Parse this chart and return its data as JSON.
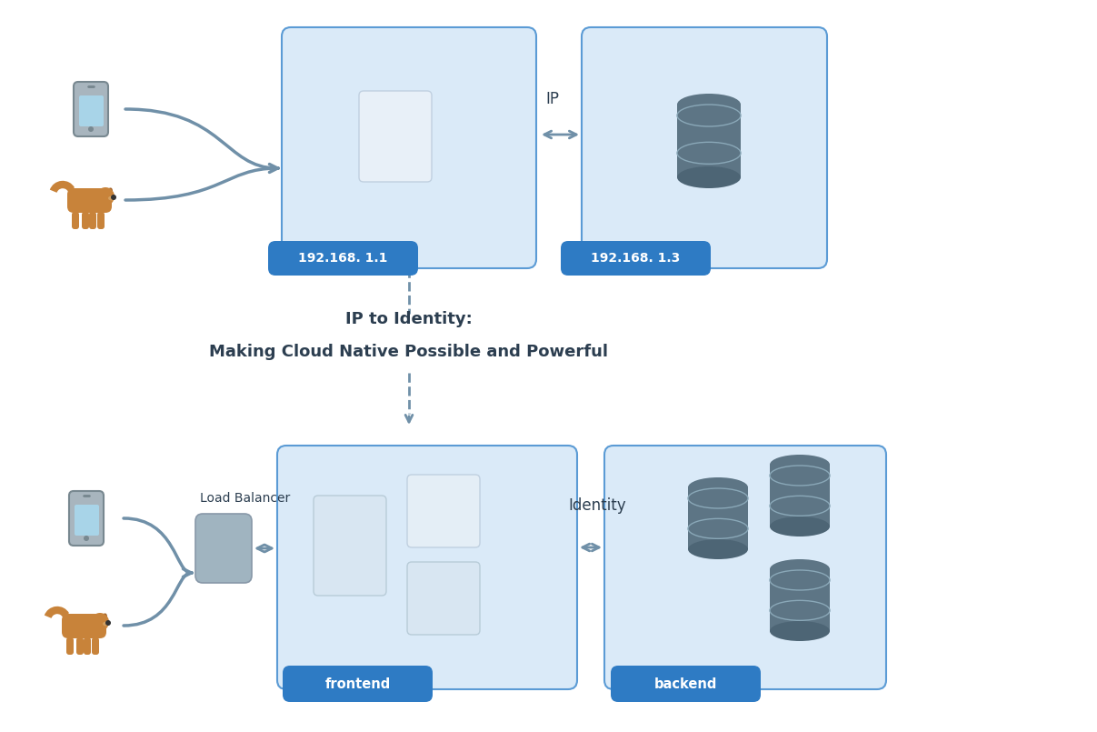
{
  "bg_color": "#ffffff",
  "light_blue_box": "#daeaf8",
  "blue_border": "#5b9bd5",
  "blue_btn": "#2e7bc4",
  "btn_text_color": "#ffffff",
  "arrow_color": "#7090a8",
  "text_dark": "#2c3e50",
  "db_color": "#5d7585",
  "lb_color": "#a0b4c0",
  "service_sq_color1": "#e8f0f8",
  "service_sq_color2": "#d8e6f2",
  "title_line1": "IP to Identity:",
  "title_line2": "Making Cloud Native Possible and Powerful",
  "ip_label_top": "IP",
  "identity_label_bottom": "Identity",
  "lb_label": "Load Balancer",
  "ip1_label": "192.168. 1.1",
  "ip2_label": "192.168. 1.3",
  "frontend_label": "frontend",
  "backend_label": "backend"
}
